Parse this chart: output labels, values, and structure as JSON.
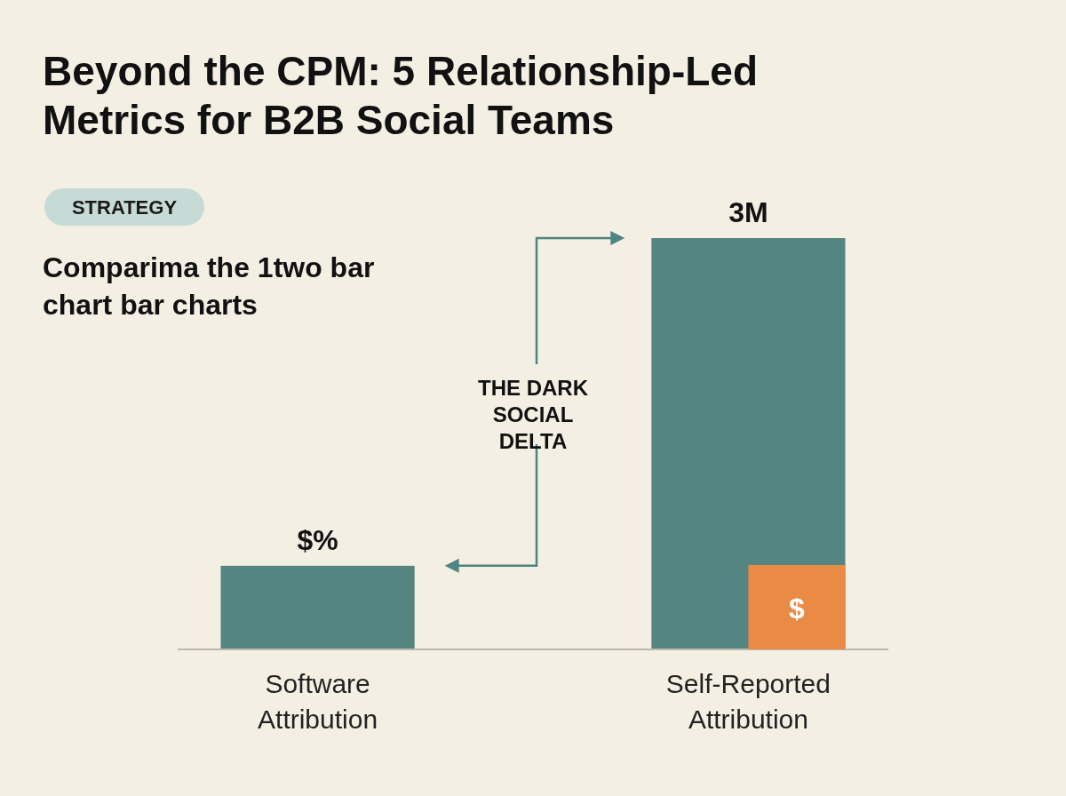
{
  "chart_data": {
    "type": "bar",
    "title": "Beyond the CPM: 5 Relationship-Led Metrics for B2B Social Teams",
    "subtitle": "Comparima the 1two bar chart bar charts",
    "categories": [
      "Software Attribution",
      "Self-Reported Attribution"
    ],
    "values": [
      0.61,
      3
    ],
    "color": "#558580",
    "ylim": [
      0,
      3
    ],
    "tick_labels": "x",
    "value_labels": [
      "$%",
      "3M"
    ],
    "annotations": [
      "STRATEGY",
      "THE DARK SOCIAL DELTA",
      "$"
    ]
  }
}
